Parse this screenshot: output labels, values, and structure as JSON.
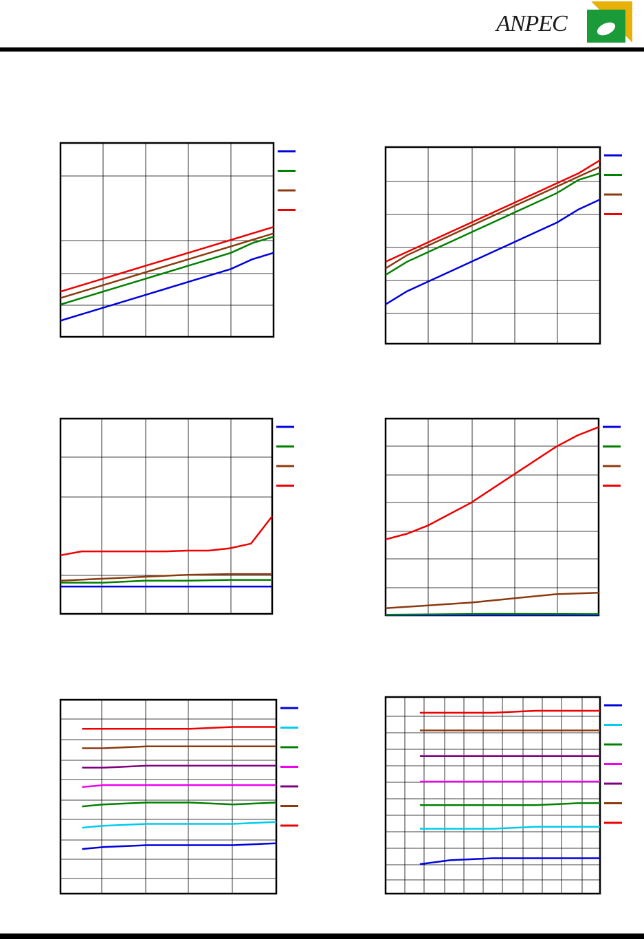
{
  "header": {
    "brand": "ANPEC",
    "brand_color": "#1b9a3a",
    "accent_color": "#e8b10a"
  },
  "chart_data": [
    {
      "type": "line",
      "grid": "on",
      "legend": "right",
      "ylim": [
        0,
        6
      ],
      "xlim": [
        0,
        5
      ],
      "series": [
        {
          "color": "#0000dd",
          "x": [
            0,
            0.5,
            1,
            1.5,
            2,
            2.5,
            3,
            3.5,
            4,
            4.5,
            5
          ],
          "values": [
            0.5,
            0.7,
            0.9,
            1.1,
            1.3,
            1.5,
            1.7,
            1.9,
            2.1,
            2.4,
            2.6
          ]
        },
        {
          "color": "#008000",
          "x": [
            0,
            0.5,
            1,
            1.5,
            2,
            2.5,
            3,
            3.5,
            4,
            4.5,
            5
          ],
          "values": [
            1.0,
            1.2,
            1.4,
            1.6,
            1.8,
            2.0,
            2.2,
            2.4,
            2.6,
            2.9,
            3.1
          ]
        },
        {
          "color": "#8b3a0f",
          "x": [
            0,
            0.5,
            1,
            1.5,
            2,
            2.5,
            3,
            3.5,
            4,
            4.5,
            5
          ],
          "values": [
            1.2,
            1.4,
            1.6,
            1.8,
            2.0,
            2.2,
            2.4,
            2.6,
            2.8,
            3.0,
            3.2
          ]
        },
        {
          "color": "#ee0000",
          "x": [
            0,
            0.5,
            1,
            1.5,
            2,
            2.5,
            3,
            3.5,
            4,
            4.5,
            5
          ],
          "values": [
            1.4,
            1.6,
            1.8,
            2.0,
            2.2,
            2.4,
            2.6,
            2.8,
            3.0,
            3.2,
            3.4
          ]
        }
      ]
    },
    {
      "type": "line",
      "grid": "on",
      "legend": "right",
      "ylim": [
        0,
        6
      ],
      "xlim": [
        0,
        5
      ],
      "series": [
        {
          "color": "#0000dd",
          "x": [
            0,
            0.5,
            1,
            1.5,
            2,
            2.5,
            3,
            3.5,
            4,
            4.5,
            5
          ],
          "values": [
            1.2,
            1.6,
            1.9,
            2.2,
            2.5,
            2.8,
            3.1,
            3.4,
            3.7,
            4.1,
            4.4
          ]
        },
        {
          "color": "#008000",
          "x": [
            0,
            0.5,
            1,
            1.5,
            2,
            2.5,
            3,
            3.5,
            4,
            4.5,
            5
          ],
          "values": [
            2.1,
            2.5,
            2.8,
            3.1,
            3.4,
            3.7,
            4.0,
            4.3,
            4.6,
            5.0,
            5.2
          ]
        },
        {
          "color": "#8b3a0f",
          "x": [
            0,
            0.5,
            1,
            1.5,
            2,
            2.5,
            3,
            3.5,
            4,
            4.5,
            5
          ],
          "values": [
            2.3,
            2.7,
            3.0,
            3.3,
            3.6,
            3.9,
            4.2,
            4.5,
            4.8,
            5.1,
            5.4
          ]
        },
        {
          "color": "#ee0000",
          "x": [
            0,
            0.5,
            1,
            1.5,
            2,
            2.5,
            3,
            3.5,
            4,
            4.5,
            5
          ],
          "values": [
            2.5,
            2.8,
            3.1,
            3.4,
            3.7,
            4.0,
            4.3,
            4.6,
            4.9,
            5.2,
            5.6
          ]
        }
      ]
    },
    {
      "type": "line",
      "grid": "on",
      "legend": "right",
      "ylim": [
        0,
        5
      ],
      "xlim": [
        0,
        5
      ],
      "series": [
        {
          "color": "#0000dd",
          "x": [
            0,
            1,
            2,
            3,
            4,
            5
          ],
          "values": [
            0.7,
            0.7,
            0.7,
            0.7,
            0.7,
            0.7
          ]
        },
        {
          "color": "#008000",
          "x": [
            0,
            1,
            2,
            3,
            4,
            5
          ],
          "values": [
            0.8,
            0.8,
            0.85,
            0.85,
            0.87,
            0.87
          ]
        },
        {
          "color": "#8b3a0f",
          "x": [
            0,
            1,
            2,
            3,
            4,
            5
          ],
          "values": [
            0.85,
            0.9,
            0.95,
            1.0,
            1.02,
            1.02
          ]
        },
        {
          "color": "#ee0000",
          "x": [
            0,
            0.5,
            1,
            1.5,
            2,
            2.5,
            3,
            3.5,
            4,
            4.5,
            5
          ],
          "values": [
            1.5,
            1.6,
            1.6,
            1.6,
            1.6,
            1.6,
            1.62,
            1.62,
            1.68,
            1.8,
            2.5
          ]
        }
      ]
    },
    {
      "type": "line",
      "grid": "on",
      "legend": "right",
      "ylim": [
        0,
        7
      ],
      "xlim": [
        0,
        5
      ],
      "series": [
        {
          "color": "#0000dd",
          "x": [
            0,
            5
          ],
          "values": [
            0.0,
            0.0
          ]
        },
        {
          "color": "#008000",
          "x": [
            0,
            2.5,
            5
          ],
          "values": [
            0.02,
            0.05,
            0.04
          ]
        },
        {
          "color": "#8b3a0f",
          "x": [
            0,
            1,
            2,
            3,
            4,
            5
          ],
          "values": [
            0.25,
            0.35,
            0.45,
            0.6,
            0.75,
            0.8
          ]
        },
        {
          "color": "#ee0000",
          "x": [
            0,
            0.5,
            1,
            1.5,
            2,
            2.5,
            3,
            3.5,
            4,
            4.5,
            5
          ],
          "values": [
            2.7,
            2.9,
            3.2,
            3.6,
            4.0,
            4.5,
            5.0,
            5.5,
            6.0,
            6.4,
            6.7
          ]
        }
      ]
    },
    {
      "type": "line",
      "grid": "on",
      "legend": "right",
      "ylim": [
        0,
        10
      ],
      "xlim": [
        0,
        5
      ],
      "series": [
        {
          "color": "#0000dd",
          "x": [
            0.5,
            1,
            2,
            3,
            4,
            5
          ],
          "values": [
            2.3,
            2.4,
            2.5,
            2.5,
            2.5,
            2.6
          ]
        },
        {
          "color": "#00ccee",
          "x": [
            0.5,
            1,
            2,
            3,
            4,
            5
          ],
          "values": [
            3.4,
            3.5,
            3.6,
            3.6,
            3.6,
            3.7
          ]
        },
        {
          "color": "#008000",
          "x": [
            0.5,
            1,
            2,
            3,
            4,
            5
          ],
          "values": [
            4.5,
            4.6,
            4.7,
            4.7,
            4.6,
            4.7
          ]
        },
        {
          "color": "#ee00ee",
          "x": [
            0.5,
            1,
            2,
            3,
            4,
            5
          ],
          "values": [
            5.5,
            5.6,
            5.6,
            5.6,
            5.6,
            5.6
          ]
        },
        {
          "color": "#7f007f",
          "x": [
            0.5,
            1,
            2,
            3,
            4,
            5
          ],
          "values": [
            6.5,
            6.5,
            6.6,
            6.6,
            6.6,
            6.6
          ]
        },
        {
          "color": "#8b3a0f",
          "x": [
            0.5,
            1,
            2,
            3,
            4,
            5
          ],
          "values": [
            7.5,
            7.5,
            7.6,
            7.6,
            7.6,
            7.6
          ]
        },
        {
          "color": "#ee0000",
          "x": [
            0.5,
            1,
            2,
            3,
            4,
            5
          ],
          "values": [
            8.5,
            8.5,
            8.5,
            8.5,
            8.6,
            8.6
          ]
        }
      ]
    },
    {
      "type": "line",
      "grid": "on",
      "legend": "right",
      "ylim": [
        0,
        10
      ],
      "xlim": [
        0,
        5
      ],
      "series": [
        {
          "color": "#0000dd",
          "x": [
            0.8,
            1.5,
            2.5,
            3.5,
            4.5,
            5
          ],
          "values": [
            1.5,
            1.7,
            1.8,
            1.8,
            1.8,
            1.8
          ]
        },
        {
          "color": "#00ccee",
          "x": [
            0.8,
            1.5,
            2.5,
            3.5,
            4.5,
            5
          ],
          "values": [
            3.3,
            3.3,
            3.3,
            3.4,
            3.4,
            3.4
          ]
        },
        {
          "color": "#008000",
          "x": [
            0.8,
            1.5,
            2.5,
            3.5,
            4.5,
            5
          ],
          "values": [
            4.5,
            4.5,
            4.5,
            4.5,
            4.6,
            4.6
          ]
        },
        {
          "color": "#ee00ee",
          "x": [
            0.8,
            1.5,
            2.5,
            3.5,
            4.5,
            5
          ],
          "values": [
            5.7,
            5.7,
            5.7,
            5.7,
            5.7,
            5.7
          ]
        },
        {
          "color": "#7f007f",
          "x": [
            0.8,
            1.5,
            2.5,
            3.5,
            4.5,
            5
          ],
          "values": [
            7.0,
            7.0,
            7.0,
            7.0,
            7.0,
            7.0
          ]
        },
        {
          "color": "#8b3a0f",
          "x": [
            0.8,
            1.5,
            2.5,
            3.5,
            4.5,
            5
          ],
          "values": [
            8.3,
            8.3,
            8.3,
            8.3,
            8.3,
            8.3
          ]
        },
        {
          "color": "#ee0000",
          "x": [
            0.8,
            1.5,
            2.5,
            3.5,
            4.5,
            5
          ],
          "values": [
            9.2,
            9.2,
            9.2,
            9.3,
            9.3,
            9.3
          ]
        }
      ]
    }
  ]
}
